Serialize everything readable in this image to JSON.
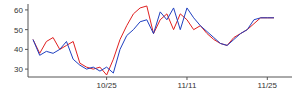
{
  "chart_data": {
    "type": "line",
    "categories": [
      null,
      null,
      null,
      null,
      null,
      null,
      null,
      null,
      null,
      null,
      null,
      "10/25",
      null,
      null,
      null,
      null,
      null,
      null,
      null,
      null,
      null,
      null,
      null,
      "11/11",
      null,
      null,
      null,
      null,
      null,
      null,
      null,
      null,
      null,
      null,
      null,
      "11/25",
      null
    ],
    "series": [
      {
        "color": "#e02020",
        "values": [
          45,
          38,
          44,
          46,
          40,
          42,
          44,
          33,
          31,
          30,
          31,
          27,
          35,
          45,
          52,
          58,
          61,
          62,
          48,
          55,
          58,
          50,
          58,
          55,
          50,
          52,
          48,
          45,
          43,
          42,
          46,
          48,
          50,
          53,
          56,
          56,
          56
        ]
      },
      {
        "color": "#2040c0",
        "values": [
          45,
          37,
          39,
          38,
          40,
          44,
          35,
          32,
          30,
          31,
          29,
          31,
          28,
          40,
          47,
          50,
          54,
          55,
          48,
          59,
          55,
          61,
          50,
          61,
          56,
          52,
          49,
          46,
          43,
          42,
          45,
          48,
          50,
          55,
          56,
          56,
          56
        ]
      }
    ],
    "ylim": [
      26,
      63
    ],
    "yticks": [
      30,
      40,
      50,
      60
    ],
    "grid": false
  }
}
